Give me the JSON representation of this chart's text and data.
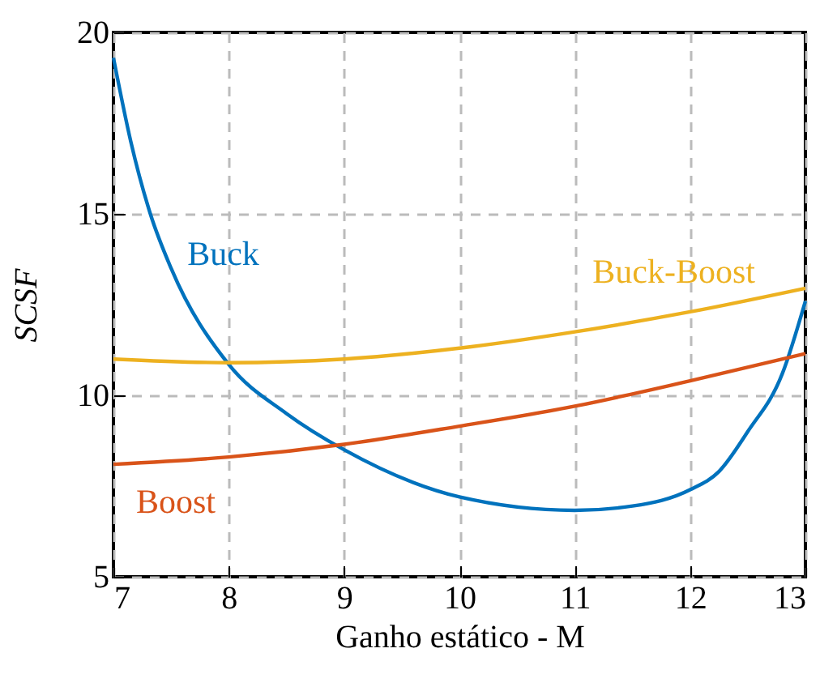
{
  "chart_data": {
    "type": "line",
    "xlabel": "Ganho estático - M",
    "ylabel": "SCSF",
    "x": [
      7,
      7.15,
      7.32,
      7.5,
      8,
      8.5,
      9,
      10,
      11,
      11.5,
      12,
      12.25,
      12.5,
      12.8,
      13
    ],
    "series": [
      {
        "name": "Buck",
        "color": "#0072bd",
        "values": [
          19.3,
          17,
          15,
          13.5,
          10.85,
          9.5,
          8.5,
          7.2,
          6.83,
          6.95,
          7.4,
          7.9,
          9.0,
          10.6,
          12.6
        ]
      },
      {
        "name": "Buck-Boost",
        "color": "#edb120",
        "x": [
          7,
          8,
          9,
          10,
          11,
          12,
          13
        ],
        "values": [
          11.0,
          10.9,
          11.0,
          11.3,
          11.75,
          12.3,
          12.95
        ]
      },
      {
        "name": "Boost",
        "color": "#d95319",
        "x": [
          7,
          8,
          9,
          10,
          11,
          12,
          13
        ],
        "values": [
          8.1,
          8.3,
          8.65,
          9.15,
          9.7,
          10.4,
          11.15
        ]
      }
    ],
    "xlim": [
      7,
      13
    ],
    "xticks": [
      7,
      8,
      9,
      10,
      11,
      12,
      13
    ],
    "ylim": [
      5,
      20
    ],
    "yticks": [
      5,
      10,
      15,
      20
    ],
    "grid": true,
    "legend": false,
    "line_style": "solid"
  }
}
